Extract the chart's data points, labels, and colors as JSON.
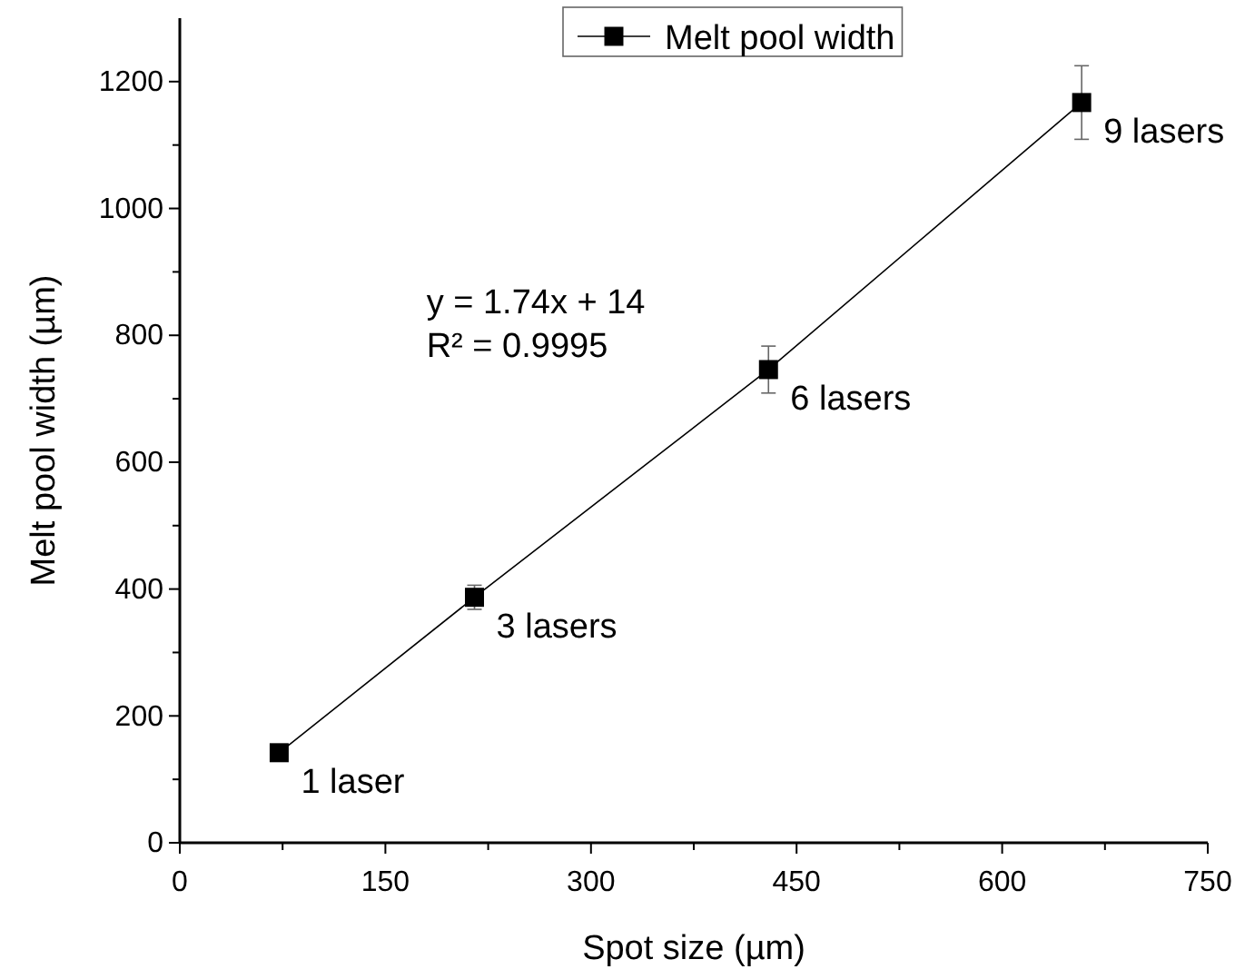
{
  "chart_data": {
    "type": "line",
    "xlabel": "Spot size (µm)",
    "ylabel": "Melt pool width (µm)",
    "x": [
      72.5,
      215,
      429.5,
      658
    ],
    "series": [
      {
        "name": "Melt pool width",
        "color": "#000000",
        "values": [
          142,
          387,
          746,
          1167
        ],
        "errors": [
          null,
          19,
          37,
          58
        ]
      }
    ],
    "xlim": [
      0,
      750
    ],
    "xticks": [
      0,
      {
        "value": 75,
        "label": null
      },
      150,
      {
        "value": 225,
        "label": null
      },
      300,
      {
        "value": 375,
        "label": null
      },
      450,
      {
        "value": 525,
        "label": null
      },
      600,
      {
        "value": 675,
        "label": null
      },
      750
    ],
    "ylim": [
      0,
      1300
    ],
    "yticks": [
      0,
      {
        "value": 100,
        "label": null
      },
      200,
      {
        "value": 300,
        "label": null
      },
      400,
      {
        "value": 500,
        "label": null
      },
      600,
      {
        "value": 700,
        "label": null
      },
      800,
      {
        "value": 900,
        "label": null
      },
      1000,
      {
        "value": 1100,
        "label": null
      },
      1200
    ],
    "marker": "square",
    "line_style": "solid",
    "legend": "top",
    "grid": false,
    "annotations": [
      {
        "text": "1 laser",
        "x": 72.5,
        "y": 142
      },
      {
        "text": "3 lasers",
        "x": 215,
        "y": 387
      },
      {
        "text": "6 lasers",
        "x": 429.5,
        "y": 746
      },
      {
        "text": "9 lasers",
        "x": 658,
        "y": 1167
      },
      "y = 1.74x + 14",
      "R² = 0.9995"
    ]
  }
}
